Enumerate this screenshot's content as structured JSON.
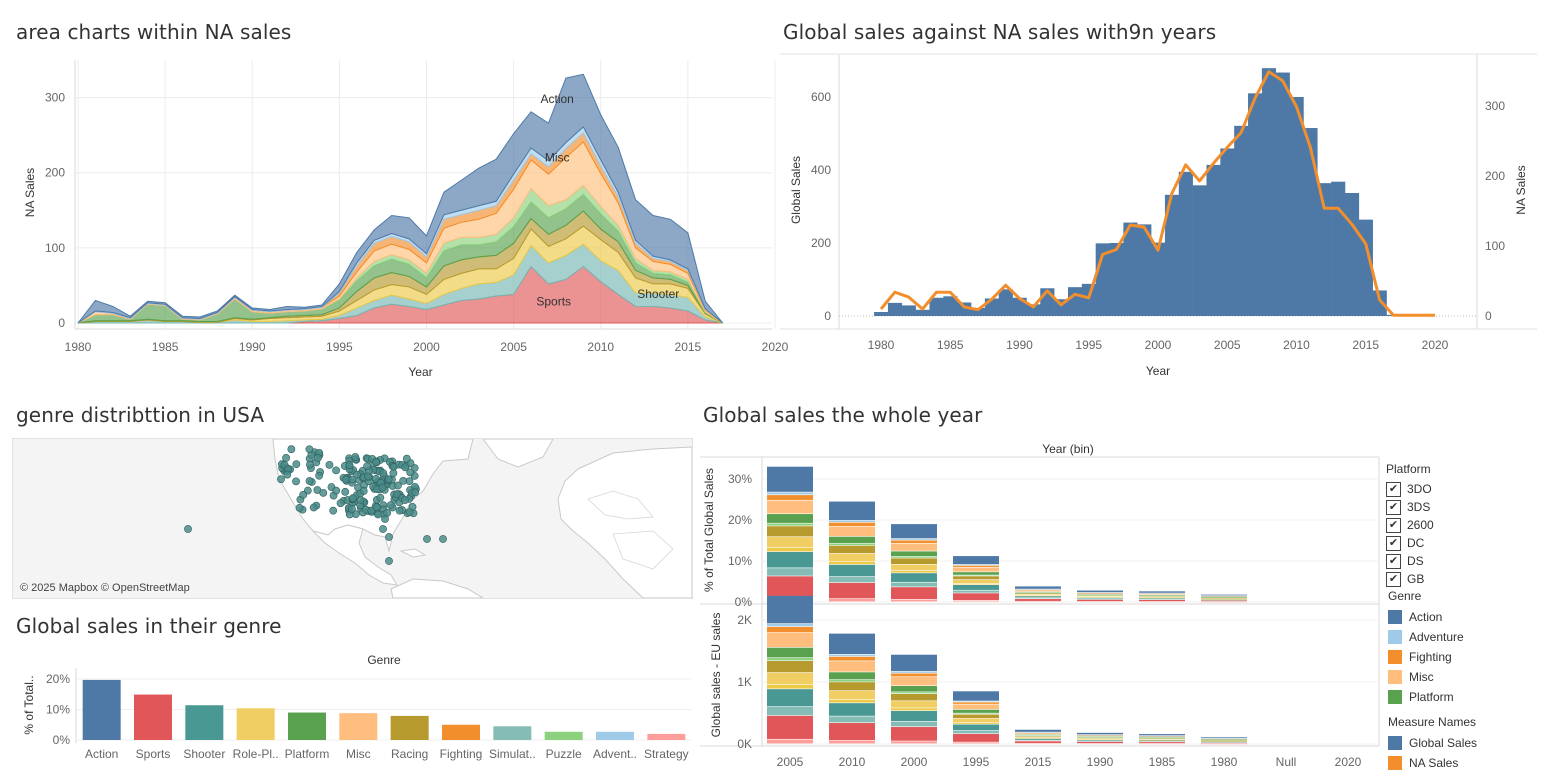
{
  "titles": {
    "area": "area charts within NA sales",
    "dual": "Global sales against NA sales  with9n years",
    "map": "genre distribttion in USA",
    "genre": "Global sales in their genre",
    "year": "Global sales the whole year"
  },
  "map": {
    "attribution": "© 2025 Mapbox © OpenStreetMap",
    "point_color": "#4a8c8a"
  },
  "legend": {
    "platform_title": "Platform",
    "platforms": [
      "3DO",
      "3DS",
      "2600",
      "DC",
      "DS",
      "GB"
    ],
    "genre_title": "Genre",
    "genres": [
      {
        "name": "Action",
        "color": "#4e79a7"
      },
      {
        "name": "Adventure",
        "color": "#a0cbe8"
      },
      {
        "name": "Fighting",
        "color": "#f28e2b"
      },
      {
        "name": "Misc",
        "color": "#ffbe7d"
      },
      {
        "name": "Platform",
        "color": "#59a14f"
      }
    ],
    "measure_title": "Measure Names",
    "measures": [
      {
        "name": "Global Sales",
        "color": "#4e79a7"
      },
      {
        "name": "NA Sales",
        "color": "#f28e2b"
      }
    ]
  },
  "chart_data": [
    {
      "id": "area",
      "type": "area",
      "title": "area charts within NA sales",
      "xlabel": "Year",
      "ylabel": "NA Sales",
      "xlim": [
        1980,
        2020
      ],
      "ylim": [
        0,
        350
      ],
      "xticks": [
        1980,
        1985,
        1990,
        1995,
        2000,
        2005,
        2010,
        2015,
        2020
      ],
      "yticks": [
        0,
        100,
        200,
        300
      ],
      "x": [
        1980,
        1981,
        1982,
        1983,
        1984,
        1985,
        1986,
        1987,
        1988,
        1989,
        1990,
        1991,
        1992,
        1993,
        1994,
        1995,
        1996,
        1997,
        1998,
        1999,
        2000,
        2001,
        2002,
        2003,
        2004,
        2005,
        2006,
        2007,
        2008,
        2009,
        2010,
        2011,
        2012,
        2013,
        2014,
        2015,
        2016,
        2017
      ],
      "series": [
        {
          "name": "Sports",
          "color": "#e15759",
          "values": [
            0,
            0,
            0,
            0,
            0,
            0,
            0,
            0,
            0,
            0,
            0,
            0,
            0,
            2,
            3,
            6,
            10,
            20,
            25,
            22,
            18,
            24,
            30,
            32,
            36,
            38,
            75,
            52,
            58,
            75,
            55,
            38,
            22,
            22,
            20,
            16,
            4,
            0
          ]
        },
        {
          "name": "Shooter",
          "color": "#76b7b2",
          "values": [
            0,
            2,
            2,
            2,
            4,
            2,
            2,
            1,
            1,
            4,
            2,
            2,
            3,
            2,
            2,
            4,
            10,
            10,
            12,
            10,
            8,
            14,
            16,
            20,
            18,
            26,
            28,
            28,
            32,
            30,
            28,
            32,
            18,
            18,
            18,
            18,
            4,
            0
          ]
        },
        {
          "name": "Role-Playing",
          "color": "#edc948",
          "values": [
            0,
            0,
            0,
            0,
            0,
            0,
            0,
            0,
            0,
            2,
            2,
            4,
            4,
            4,
            4,
            6,
            10,
            14,
            14,
            16,
            12,
            20,
            20,
            20,
            18,
            22,
            22,
            22,
            22,
            24,
            28,
            24,
            20,
            12,
            14,
            12,
            4,
            0
          ]
        },
        {
          "name": "Racing",
          "color": "#b69a2e",
          "values": [
            0,
            1,
            1,
            1,
            1,
            1,
            1,
            1,
            1,
            1,
            1,
            1,
            2,
            2,
            2,
            4,
            12,
            16,
            16,
            14,
            10,
            18,
            18,
            16,
            18,
            20,
            14,
            16,
            18,
            20,
            14,
            14,
            10,
            8,
            6,
            4,
            1,
            0
          ]
        },
        {
          "name": "Platform",
          "color": "#59a14f",
          "values": [
            0,
            8,
            8,
            2,
            20,
            20,
            2,
            2,
            10,
            25,
            10,
            6,
            6,
            6,
            8,
            10,
            14,
            16,
            18,
            16,
            12,
            20,
            20,
            16,
            18,
            22,
            22,
            22,
            22,
            22,
            20,
            14,
            10,
            6,
            6,
            4,
            1,
            0
          ]
        },
        {
          "name": "Simulation",
          "color": "#8cd17d",
          "values": [
            0,
            0,
            0,
            0,
            0,
            0,
            0,
            0,
            0,
            0,
            0,
            0,
            0,
            0,
            0,
            2,
            4,
            6,
            6,
            6,
            6,
            10,
            10,
            10,
            10,
            12,
            18,
            16,
            12,
            12,
            10,
            8,
            6,
            4,
            4,
            4,
            1,
            0
          ]
        },
        {
          "name": "Misc",
          "color": "#ffbe7d",
          "values": [
            0,
            4,
            2,
            1,
            1,
            1,
            1,
            1,
            1,
            2,
            2,
            2,
            2,
            2,
            2,
            4,
            8,
            14,
            14,
            14,
            14,
            20,
            20,
            24,
            28,
            38,
            38,
            42,
            56,
            58,
            44,
            30,
            14,
            12,
            10,
            8,
            2,
            0
          ]
        },
        {
          "name": "Fighting",
          "color": "#f28e2b",
          "values": [
            0,
            0,
            0,
            0,
            0,
            0,
            0,
            0,
            0,
            0,
            0,
            0,
            0,
            0,
            0,
            4,
            8,
            10,
            10,
            10,
            8,
            12,
            10,
            12,
            10,
            12,
            8,
            10,
            12,
            12,
            10,
            8,
            6,
            4,
            4,
            4,
            1,
            0
          ]
        },
        {
          "name": "Adventure",
          "color": "#a0cbe8",
          "values": [
            0,
            1,
            1,
            1,
            1,
            1,
            1,
            1,
            1,
            1,
            1,
            1,
            1,
            1,
            1,
            2,
            4,
            4,
            4,
            4,
            4,
            6,
            6,
            6,
            6,
            8,
            8,
            8,
            8,
            8,
            8,
            6,
            4,
            3,
            2,
            2,
            1,
            0
          ]
        },
        {
          "name": "Action",
          "color": "#4e79a7",
          "values": [
            0,
            14,
            8,
            2,
            2,
            2,
            2,
            2,
            2,
            2,
            2,
            2,
            4,
            2,
            2,
            10,
            14,
            14,
            24,
            28,
            24,
            30,
            40,
            50,
            56,
            54,
            48,
            50,
            86,
            70,
            60,
            60,
            54,
            54,
            54,
            48,
            10,
            0
          ]
        }
      ],
      "annotations": [
        {
          "text": "Action",
          "x": 2007.5,
          "y": 293
        },
        {
          "text": "Misc",
          "x": 2007.5,
          "y": 215
        },
        {
          "text": "Shooter",
          "x": 2013.3,
          "y": 33
        },
        {
          "text": "Sports",
          "x": 2007.3,
          "y": 23
        }
      ]
    },
    {
      "id": "dual",
      "type": "bar",
      "title": "Global sales against NA sales  with9n years",
      "xlabel": "Year",
      "ylabel": "Global Sales",
      "ylabel2": "NA Sales",
      "xlim": [
        1976,
        2024
      ],
      "ylim": [
        0,
        700
      ],
      "ylim2": [
        0,
        350
      ],
      "xticks": [
        1980,
        1985,
        1990,
        1995,
        2000,
        2005,
        2010,
        2015,
        2020
      ],
      "yticks": [
        0,
        200,
        400,
        600
      ],
      "yticks2": [
        0,
        100,
        200,
        300
      ],
      "x": [
        1980,
        1981,
        1982,
        1983,
        1984,
        1985,
        1986,
        1987,
        1988,
        1989,
        1990,
        1991,
        1992,
        1993,
        1994,
        1995,
        1996,
        1997,
        1998,
        1999,
        2000,
        2001,
        2002,
        2003,
        2004,
        2005,
        2006,
        2007,
        2008,
        2009,
        2010,
        2011,
        2012,
        2013,
        2014,
        2015,
        2016,
        2017,
        2018,
        2019,
        2020
      ],
      "series": [
        {
          "name": "Global Sales",
          "color": "#4e79a7",
          "values": [
            11,
            36,
            29,
            17,
            50,
            54,
            37,
            22,
            48,
            73,
            50,
            32,
            76,
            46,
            79,
            88,
            199,
            200,
            256,
            251,
            201,
            332,
            395,
            358,
            414,
            459,
            521,
            610,
            679,
            667,
            600,
            515,
            364,
            368,
            337,
            264,
            70,
            3,
            0,
            0,
            0
          ]
        },
        {
          "name": "NA Sales",
          "color": "#f28e2b",
          "values": [
            10,
            34,
            27,
            10,
            34,
            34,
            13,
            9,
            24,
            44,
            25,
            13,
            36,
            16,
            31,
            26,
            88,
            95,
            130,
            127,
            94,
            175,
            216,
            193,
            218,
            241,
            262,
            311,
            349,
            336,
            299,
            241,
            154,
            154,
            131,
            103,
            23,
            1,
            1,
            1,
            1
          ]
        }
      ]
    },
    {
      "id": "genre",
      "type": "bar",
      "title": "Global sales in their genre",
      "xlabel": "Genre",
      "ylabel": "% of Total..",
      "ylim": [
        0,
        0.22
      ],
      "yticks": [
        0,
        0.1,
        0.2
      ],
      "ytick_labels": [
        "0%",
        "10%",
        "20%"
      ],
      "categories": [
        "Action",
        "Sports",
        "Shooter",
        "Role-Pl..",
        "Platform",
        "Misc",
        "Racing",
        "Fighting",
        "Simulat..",
        "Puzzle",
        "Advent..",
        "Strategy"
      ],
      "values": [
        0.197,
        0.149,
        0.114,
        0.104,
        0.09,
        0.088,
        0.079,
        0.05,
        0.045,
        0.027,
        0.027,
        0.02
      ],
      "colors": [
        "#4e79a7",
        "#e15759",
        "#499894",
        "#f1ce63",
        "#59a14f",
        "#ffbe7d",
        "#b69a2e",
        "#f28e2b",
        "#86bcb6",
        "#8cd17d",
        "#a0cbe8",
        "#ff9d9a"
      ]
    },
    {
      "id": "year-pct",
      "type": "bar",
      "stacked": true,
      "title": "Global sales the whole year",
      "xlabel": "Year (bin)",
      "ylabel": "% of Total Global Sales",
      "ylim": [
        0,
        0.34
      ],
      "yticks": [
        0,
        0.1,
        0.2,
        0.3
      ],
      "ytick_labels": [
        "0%",
        "10%",
        "20%",
        "30%"
      ],
      "categories": [
        "2005",
        "2010",
        "2000",
        "1995",
        "2015",
        "1990",
        "1985",
        "1980",
        "Null",
        "2020"
      ],
      "totals": [
        0.33,
        0.245,
        0.19,
        0.112,
        0.038,
        0.028,
        0.026,
        0.018,
        0,
        0
      ],
      "stack_colors": [
        "#ff9d9a",
        "#e15759",
        "#86bcb6",
        "#499894",
        "#edc948",
        "#f1ce63",
        "#b69a2e",
        "#8cd17d",
        "#59a14f",
        "#ffbe7d",
        "#f28e2b",
        "#a0cbe8",
        "#4e79a7"
      ],
      "stack_shares": [
        0.03,
        0.16,
        0.06,
        0.12,
        0.03,
        0.08,
        0.08,
        0.02,
        0.07,
        0.1,
        0.04,
        0.02,
        0.19
      ]
    },
    {
      "id": "year-abs",
      "type": "bar",
      "stacked": true,
      "xlabel": "",
      "ylabel": "Global sales - EU sales",
      "ylim": [
        0,
        2400
      ],
      "yticks": [
        0,
        1000,
        2000
      ],
      "ytick_labels": [
        "0K",
        "1K",
        "2K"
      ],
      "categories": [
        "2005",
        "2010",
        "2000",
        "1995",
        "2015",
        "1990",
        "1985",
        "1980",
        "Null",
        "2020"
      ],
      "totals": [
        2390,
        1780,
        1440,
        850,
        230,
        180,
        160,
        110,
        0,
        0
      ],
      "stack_colors": [
        "#ff9d9a",
        "#e15759",
        "#86bcb6",
        "#499894",
        "#edc948",
        "#f1ce63",
        "#b69a2e",
        "#8cd17d",
        "#59a14f",
        "#ffbe7d",
        "#f28e2b",
        "#a0cbe8",
        "#4e79a7"
      ],
      "stack_shares": [
        0.03,
        0.16,
        0.06,
        0.12,
        0.03,
        0.08,
        0.08,
        0.02,
        0.07,
        0.1,
        0.04,
        0.02,
        0.19
      ]
    }
  ]
}
